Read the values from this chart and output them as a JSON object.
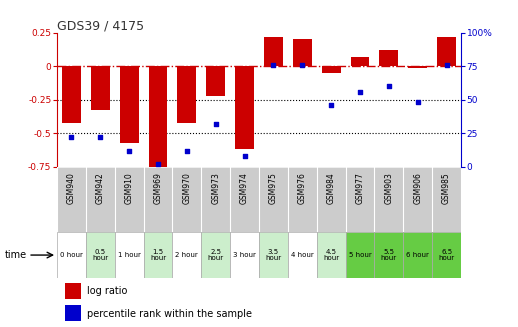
{
  "title": "GDS39 / 4175",
  "samples": [
    "GSM940",
    "GSM942",
    "GSM910",
    "GSM969",
    "GSM970",
    "GSM973",
    "GSM974",
    "GSM975",
    "GSM976",
    "GSM984",
    "GSM977",
    "GSM903",
    "GSM906",
    "GSM985"
  ],
  "time_labels": [
    "0 hour",
    "0.5\nhour",
    "1 hour",
    "1.5\nhour",
    "2 hour",
    "2.5\nhour",
    "3 hour",
    "3.5\nhour",
    "4 hour",
    "4.5\nhour",
    "5 hour",
    "5.5\nhour",
    "6 hour",
    "6.5\nhour"
  ],
  "log_ratio": [
    -0.42,
    -0.33,
    -0.57,
    -0.78,
    -0.42,
    -0.22,
    -0.62,
    0.22,
    0.2,
    -0.05,
    0.07,
    0.12,
    -0.01,
    0.22
  ],
  "percentile": [
    22,
    22,
    12,
    2,
    12,
    32,
    8,
    76,
    76,
    46,
    56,
    60,
    48,
    76
  ],
  "ylim_left": [
    -0.75,
    0.25
  ],
  "ylim_right": [
    0,
    100
  ],
  "yticks_left": [
    -0.75,
    -0.5,
    -0.25,
    0,
    0.25
  ],
  "yticks_right": [
    0,
    25,
    50,
    75,
    100
  ],
  "bar_color": "#cc0000",
  "scatter_color": "#0000cc",
  "ref_line_color": "#cc0000",
  "dotted_line_color": "#000000",
  "title_color": "#333333",
  "left_tick_color": "#cc0000",
  "right_tick_color": "#0000cc",
  "time_bg_colors": [
    "#ffffff",
    "#cceecc",
    "#ffffff",
    "#cceecc",
    "#ffffff",
    "#cceecc",
    "#ffffff",
    "#cceecc",
    "#ffffff",
    "#cceecc",
    "#66cc44",
    "#66cc44",
    "#66cc44",
    "#66cc44"
  ],
  "sample_bg_color": "#cccccc",
  "legend_bar_label": "log ratio",
  "legend_scatter_label": "percentile rank within the sample"
}
